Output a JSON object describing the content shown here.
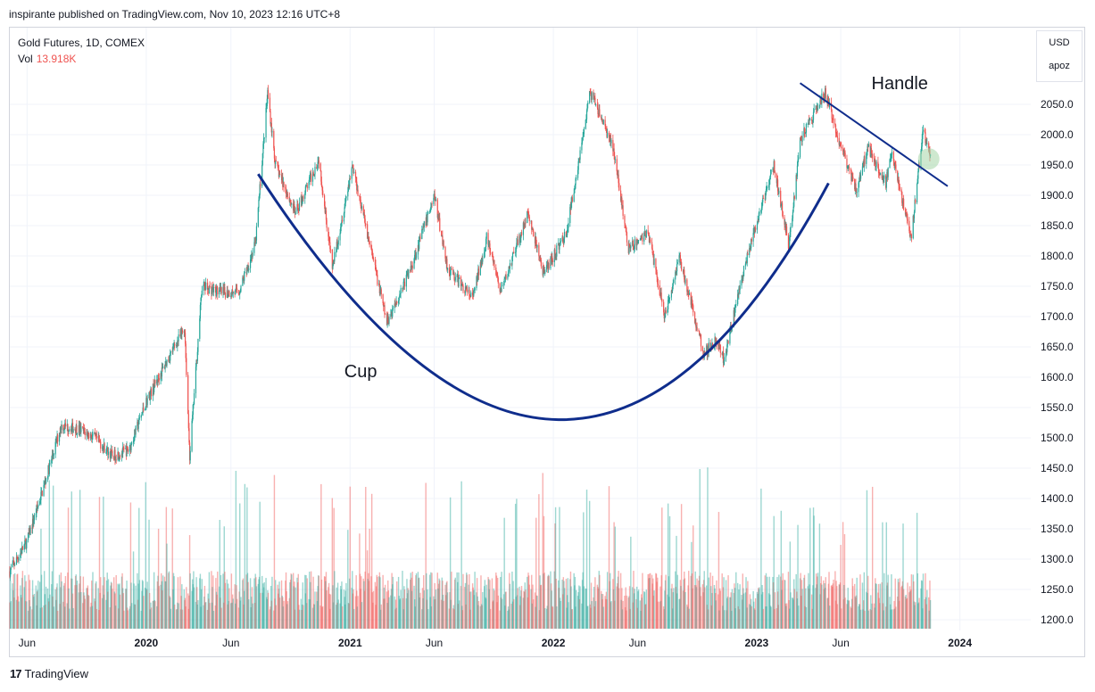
{
  "header": {
    "publisher": "inspirante published on TradingView.com, Nov 10, 2023 12:16 UTC+8"
  },
  "legend": {
    "symbol": "Gold Futures, 1D, COMEX",
    "vol_label": "Vol",
    "vol_value": "13.918K"
  },
  "currency": {
    "unit": "USD",
    "scale": "apoz"
  },
  "footer": {
    "brand": "TradingView"
  },
  "colors": {
    "up": "#26a69a",
    "down": "#ef5350",
    "pattern_line": "#0f2d8c",
    "highlight": "#a5d6a7"
  },
  "chart_data": {
    "type": "candlestick",
    "title": "Gold Futures, 1D, COMEX",
    "ylim": [
      1180,
      2100
    ],
    "y_ticks": [
      1200,
      1250,
      1300,
      1350,
      1400,
      1450,
      1500,
      1550,
      1600,
      1650,
      1700,
      1750,
      1800,
      1850,
      1900,
      1950,
      2000,
      2050
    ],
    "x_ticks": [
      {
        "date": "2019-06-01",
        "label": "Jun",
        "bold": false
      },
      {
        "date": "2020-01-01",
        "label": "2020",
        "bold": true
      },
      {
        "date": "2020-06-01",
        "label": "Jun",
        "bold": false
      },
      {
        "date": "2021-01-01",
        "label": "2021",
        "bold": true
      },
      {
        "date": "2021-06-01",
        "label": "Jun",
        "bold": false
      },
      {
        "date": "2022-01-01",
        "label": "2022",
        "bold": true
      },
      {
        "date": "2022-06-01",
        "label": "Jun",
        "bold": false
      },
      {
        "date": "2023-01-01",
        "label": "2023",
        "bold": true
      },
      {
        "date": "2023-06-01",
        "label": "Jun",
        "bold": false
      },
      {
        "date": "2024-01-01",
        "label": "2024",
        "bold": true
      }
    ],
    "price_path": [
      [
        "2019-05-01",
        1280
      ],
      [
        "2019-06-01",
        1330
      ],
      [
        "2019-07-01",
        1420
      ],
      [
        "2019-08-01",
        1520
      ],
      [
        "2019-09-01",
        1515
      ],
      [
        "2019-10-01",
        1500
      ],
      [
        "2019-11-01",
        1470
      ],
      [
        "2019-12-01",
        1480
      ],
      [
        "2020-01-01",
        1560
      ],
      [
        "2020-02-20",
        1650
      ],
      [
        "2020-03-10",
        1680
      ],
      [
        "2020-03-19",
        1470
      ],
      [
        "2020-04-10",
        1750
      ],
      [
        "2020-05-15",
        1740
      ],
      [
        "2020-06-15",
        1740
      ],
      [
        "2020-07-15",
        1820
      ],
      [
        "2020-08-06",
        2070
      ],
      [
        "2020-08-20",
        1950
      ],
      [
        "2020-09-25",
        1870
      ],
      [
        "2020-11-06",
        1960
      ],
      [
        "2020-11-30",
        1780
      ],
      [
        "2021-01-05",
        1950
      ],
      [
        "2021-03-08",
        1690
      ],
      [
        "2021-04-20",
        1780
      ],
      [
        "2021-06-01",
        1900
      ],
      [
        "2021-06-25",
        1780
      ],
      [
        "2021-08-09",
        1730
      ],
      [
        "2021-09-03",
        1830
      ],
      [
        "2021-09-29",
        1740
      ],
      [
        "2021-11-16",
        1870
      ],
      [
        "2021-12-15",
        1770
      ],
      [
        "2022-01-25",
        1840
      ],
      [
        "2022-03-08",
        2070
      ],
      [
        "2022-04-18",
        1980
      ],
      [
        "2022-05-16",
        1810
      ],
      [
        "2022-06-20",
        1840
      ],
      [
        "2022-07-20",
        1700
      ],
      [
        "2022-08-15",
        1800
      ],
      [
        "2022-09-28",
        1640
      ],
      [
        "2022-10-20",
        1660
      ],
      [
        "2022-11-03",
        1630
      ],
      [
        "2022-12-15",
        1800
      ],
      [
        "2023-02-01",
        1950
      ],
      [
        "2023-02-28",
        1815
      ],
      [
        "2023-03-20",
        1990
      ],
      [
        "2023-05-04",
        2070
      ],
      [
        "2023-06-01",
        1980
      ],
      [
        "2023-06-29",
        1910
      ],
      [
        "2023-07-20",
        1980
      ],
      [
        "2023-08-21",
        1920
      ],
      [
        "2023-09-01",
        1970
      ],
      [
        "2023-10-05",
        1830
      ],
      [
        "2023-10-27",
        2005
      ],
      [
        "2023-11-09",
        1965
      ]
    ],
    "volume_scale": "relative",
    "annotations": [
      {
        "text": "Cup",
        "date": "2021-01-20",
        "price": 1600
      },
      {
        "text": "Handle",
        "date": "2023-09-15",
        "price": 2075
      }
    ],
    "cup_curve": [
      [
        "2020-07-20",
        1935
      ],
      [
        "2022-01-10",
        1530
      ],
      [
        "2023-05-10",
        1920
      ]
    ],
    "handle_line": [
      [
        "2023-03-20",
        2085
      ],
      [
        "2023-12-10",
        1915
      ]
    ],
    "highlight_point": {
      "date": "2023-11-06",
      "price": 1960
    }
  }
}
